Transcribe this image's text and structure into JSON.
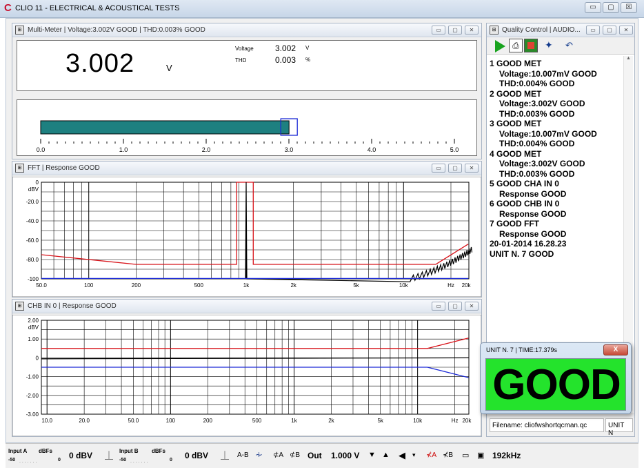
{
  "window": {
    "title": "CLIO 11 - ELECTRICAL & ACOUSTICAL TESTS",
    "logo": "C",
    "controls": [
      "▭",
      "▢",
      "☒"
    ]
  },
  "multimeter": {
    "title": "Multi-Meter  |  Voltage:3.002V GOOD  |  THD:0.003% GOOD",
    "icon": "multimeter-icon",
    "big_value": "3.002",
    "big_unit": "V",
    "readings": [
      {
        "label": "Voltage",
        "value": "3.002",
        "unit": "V"
      },
      {
        "label": "THD",
        "value": "0.003",
        "unit": "%"
      }
    ],
    "bar": {
      "value": 3.002,
      "scale_max": 5.0,
      "fill": "#1e8080"
    },
    "scale_labels": [
      "0.0",
      "1.0",
      "2.0",
      "3.0",
      "4.0",
      "5.0"
    ]
  },
  "fft": {
    "title": "FFT  |  Response GOOD",
    "icon": "fft-icon",
    "unit": "dBV",
    "y_labels": [
      "0",
      "-20.0",
      "-40.0",
      "-60.0",
      "-80.0",
      "-100"
    ],
    "x_labels": [
      "50.0",
      "100",
      "200",
      "500",
      "1k",
      "2k",
      "5k",
      "10k",
      "Hz",
      "20k"
    ]
  },
  "chb": {
    "title": "CHB IN 0  |  Response GOOD",
    "icon": "chb-icon",
    "unit": "dBV",
    "y_labels": [
      "2.00",
      "1.00",
      "0",
      "-1.00",
      "-2.00",
      "-3.00"
    ],
    "x_labels": [
      "10.0",
      "20.0",
      "50.0",
      "100",
      "200",
      "500",
      "1k",
      "2k",
      "5k",
      "10k",
      "Hz",
      "20k"
    ]
  },
  "quality_control": {
    "title": "Quality Control | AUDIO...",
    "icon": "qc-icon",
    "toolbar": [
      "play-icon",
      "print-icon",
      "report-icon",
      "settings-icon",
      "undo-icon"
    ],
    "lines": [
      {
        "text": "1 GOOD MET",
        "indent": false
      },
      {
        "text": "Voltage:10.007mV GOOD",
        "indent": true
      },
      {
        "text": "THD:0.004% GOOD",
        "indent": true
      },
      {
        "text": "2 GOOD MET",
        "indent": false
      },
      {
        "text": "Voltage:3.002V GOOD",
        "indent": true
      },
      {
        "text": "THD:0.003% GOOD",
        "indent": true
      },
      {
        "text": "3 GOOD MET",
        "indent": false
      },
      {
        "text": "Voltage:10.007mV GOOD",
        "indent": true
      },
      {
        "text": "THD:0.004% GOOD",
        "indent": true
      },
      {
        "text": "4 GOOD MET",
        "indent": false
      },
      {
        "text": "Voltage:3.002V GOOD",
        "indent": true
      },
      {
        "text": "THD:0.003% GOOD",
        "indent": true
      },
      {
        "text": "5 GOOD CHA IN 0",
        "indent": false
      },
      {
        "text": "Response GOOD",
        "indent": true
      },
      {
        "text": "6 GOOD CHB IN 0",
        "indent": false
      },
      {
        "text": "Response GOOD",
        "indent": true
      },
      {
        "text": "7 GOOD FFT",
        "indent": false
      },
      {
        "text": "Response GOOD",
        "indent": true
      },
      {
        "text": "20-01-2014 16.28.23",
        "indent": false
      },
      {
        "text": "UNIT N. 7 GOOD",
        "indent": false
      }
    ],
    "filename": "Filename: cliofwshortqcman.qc",
    "unit_field": "UNIT N"
  },
  "good_popup": {
    "title": "UNIT N. 7 | TIME:17.379s",
    "result": "GOOD",
    "result_color": "#24e32c",
    "close": "X"
  },
  "statusbar": {
    "input_a_label": "Input A",
    "input_a_unit": "dBFs",
    "input_a_min": "-50",
    "input_a_max": "0",
    "input_a_level": "0 dBV",
    "input_b_label": "Input B",
    "input_b_unit": "dBFs",
    "input_b_min": "-50",
    "input_b_max": "0",
    "input_b_level": "0 dBV",
    "a_minus_b": "A-B",
    "phase_a": "⊄A",
    "phase_b": "⊄B",
    "out_label": "Out",
    "out_value": "1.000 V",
    "mute_a": "⊀A",
    "mute_b": "⊀B",
    "sample_rate": "192kHz"
  }
}
